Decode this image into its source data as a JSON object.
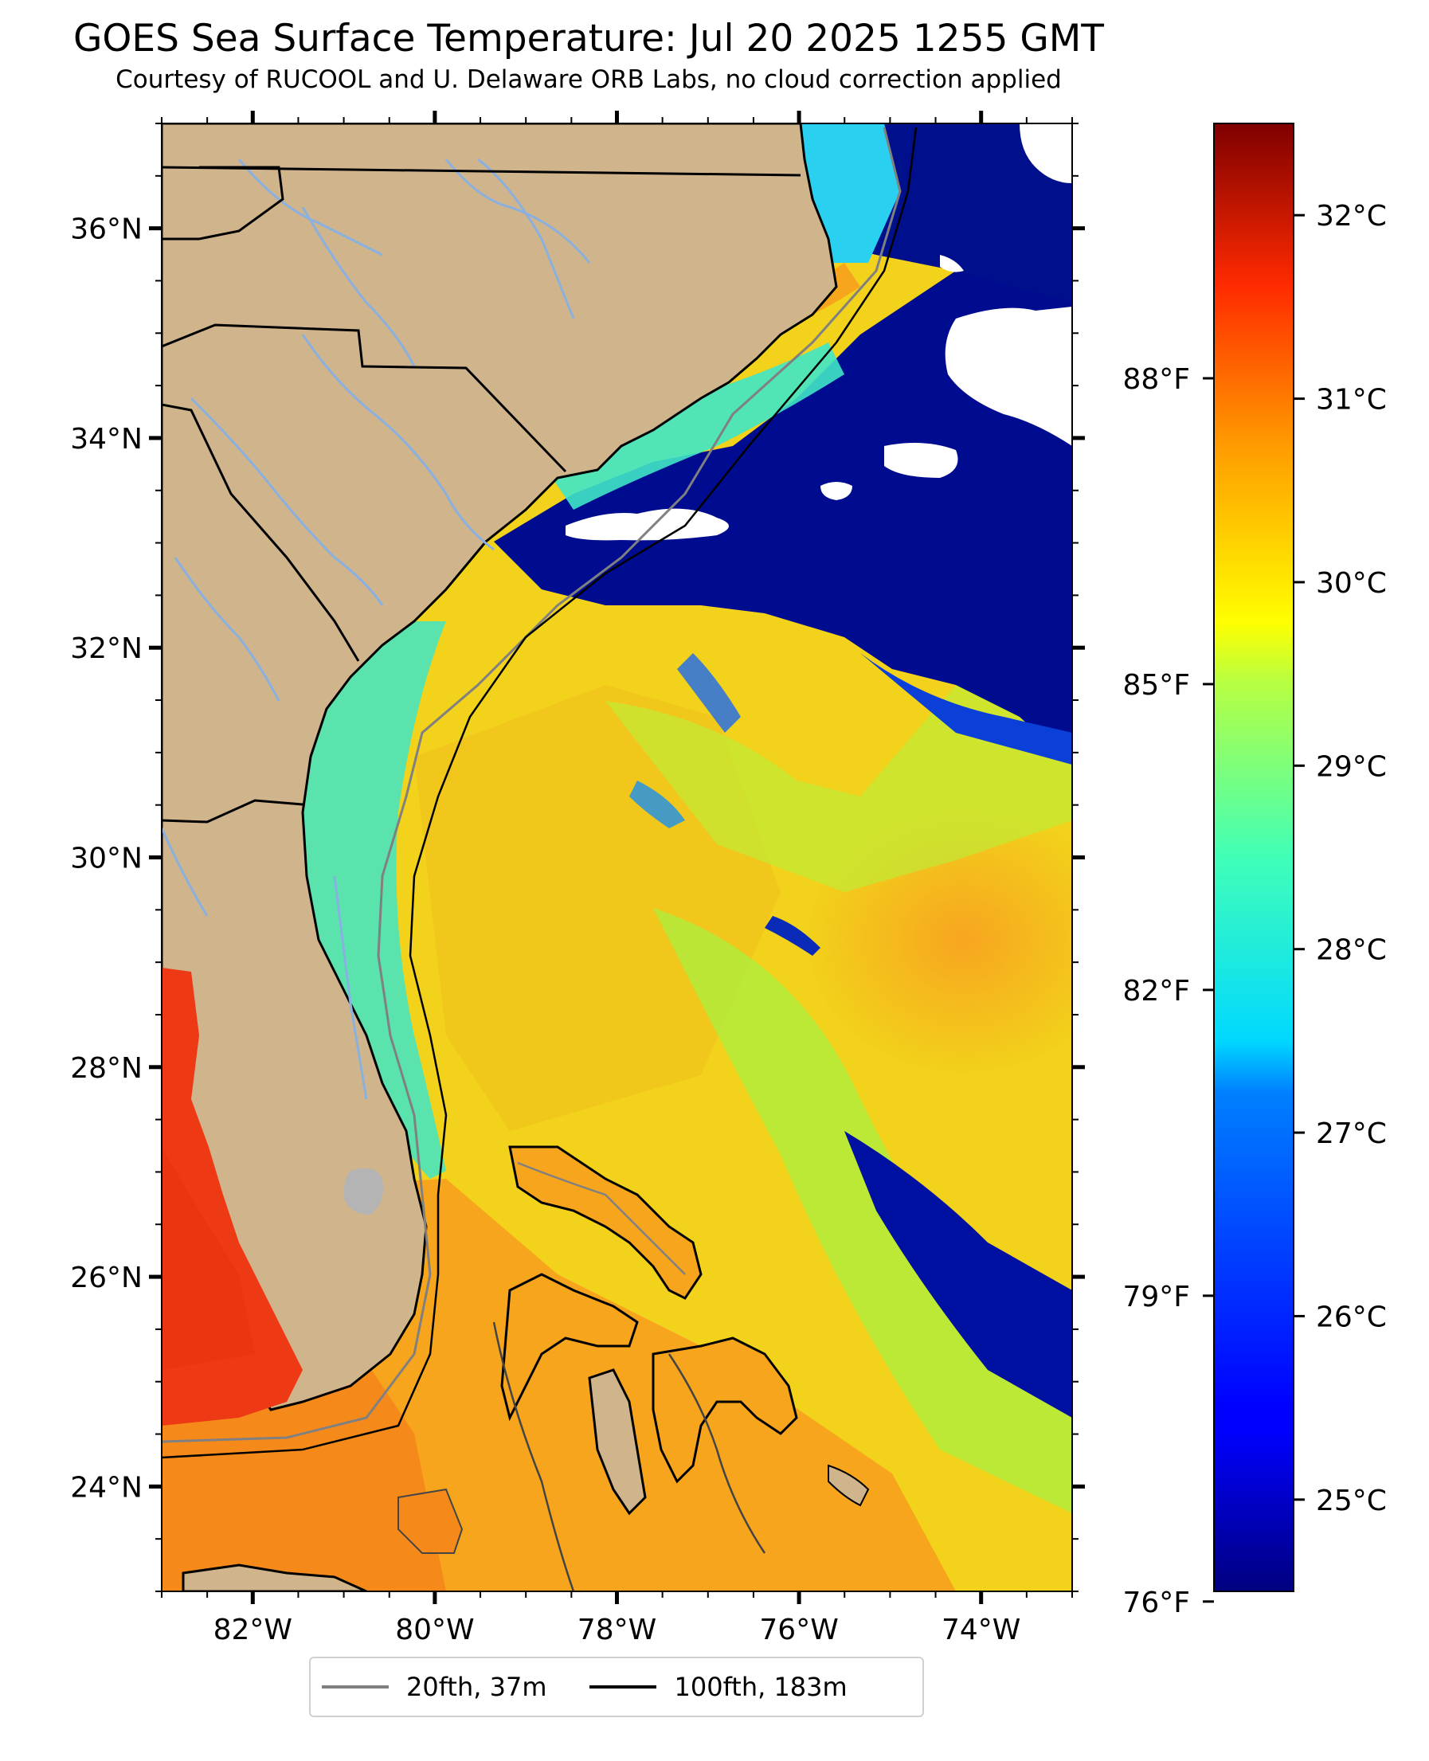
{
  "header": {
    "title": "GOES Sea Surface Temperature: Jul 20 2025 1255 GMT",
    "subtitle": "Courtesy of RUCOOL and U. Delaware ORB Labs, no cloud correction applied"
  },
  "map": {
    "extent": {
      "lon_min": -83,
      "lon_max": -73,
      "lat_min": 23,
      "lat_max": 37
    },
    "lat_ticks": [
      {
        "value": 24,
        "label": "24°N"
      },
      {
        "value": 26,
        "label": "26°N"
      },
      {
        "value": 28,
        "label": "28°N"
      },
      {
        "value": 30,
        "label": "30°N"
      },
      {
        "value": 32,
        "label": "32°N"
      },
      {
        "value": 34,
        "label": "34°N"
      },
      {
        "value": 36,
        "label": "36°N"
      }
    ],
    "lon_ticks": [
      {
        "value": -82,
        "label": "82°W"
      },
      {
        "value": -80,
        "label": "80°W"
      },
      {
        "value": -78,
        "label": "78°W"
      },
      {
        "value": -76,
        "label": "76°W"
      },
      {
        "value": -74,
        "label": "74°W"
      }
    ],
    "fahrenheit_ticks": [
      {
        "value": 76,
        "label": "76°F"
      },
      {
        "value": 79,
        "label": "79°F"
      },
      {
        "value": 82,
        "label": "82°F"
      },
      {
        "value": 85,
        "label": "85°F"
      },
      {
        "value": 88,
        "label": "88°F"
      }
    ],
    "colors": {
      "land": "#d0b48c",
      "cloud": "#ffffff",
      "rivers": "#8ab0e0",
      "borders": "#000000",
      "isobath_20fth": "#808080",
      "isobath_100fth": "#000000"
    }
  },
  "colorbar": {
    "min_c": 24.5,
    "max_c": 32.5,
    "colormap": "jet",
    "ticks": [
      {
        "value": 25,
        "label": "25°C"
      },
      {
        "value": 26,
        "label": "26°C"
      },
      {
        "value": 27,
        "label": "27°C"
      },
      {
        "value": 28,
        "label": "28°C"
      },
      {
        "value": 29,
        "label": "29°C"
      },
      {
        "value": 30,
        "label": "30°C"
      },
      {
        "value": 31,
        "label": "31°C"
      },
      {
        "value": 32,
        "label": "32°C"
      }
    ]
  },
  "legend": {
    "items": [
      {
        "label": "20fth, 37m",
        "color": "#808080"
      },
      {
        "label": "100fth, 183m",
        "color": "#000000"
      }
    ]
  }
}
